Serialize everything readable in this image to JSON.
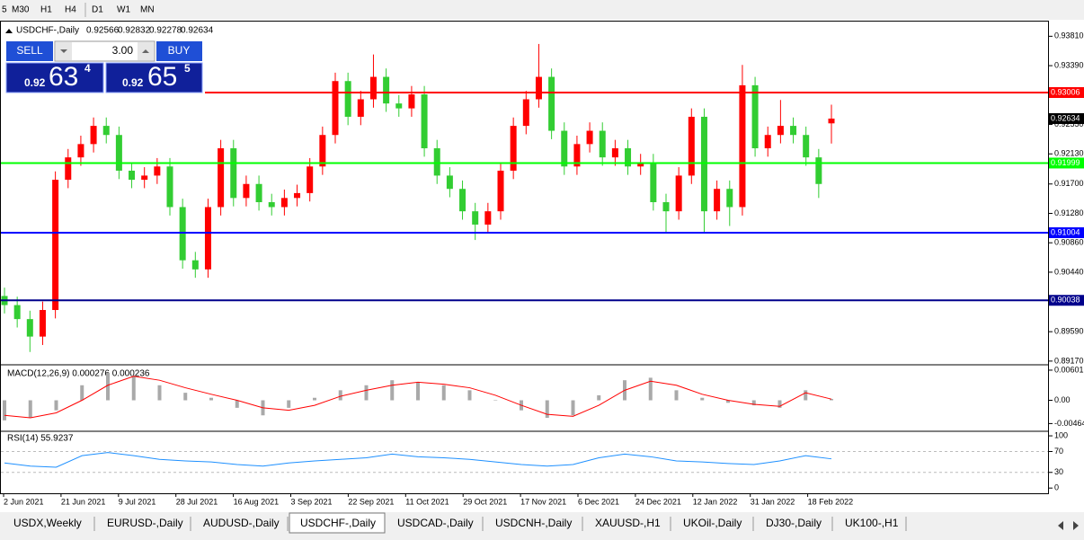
{
  "toolbar": [
    "5",
    "M30",
    "H1",
    "H4",
    "D1",
    "W1",
    "MN"
  ],
  "trade_panel": {
    "sell": "SELL",
    "lot": "3.00",
    "buy": "BUY",
    "sell_price": {
      "big": "0.92",
      "main": "63",
      "small": "4"
    },
    "buy_price": {
      "big": "0.92",
      "main": "65",
      "small": "5"
    }
  },
  "tabs": [
    "USDX,Weekly",
    "EURUSD-,Daily",
    "AUDUSD-,Daily",
    "USDCHF-,Daily",
    "USDCAD-,Daily",
    "USDCNH-,Daily",
    "XAUUSD-,H1",
    "UKOil-,Daily",
    "DJ30-,Daily",
    "UK100-,H1"
  ],
  "active_tab": 3,
  "chart_data": {
    "type": "candlestick",
    "symbol_label": "USDCHF-,Daily",
    "open": [
      0.901,
      0.8997,
      0.8977,
      0.8952,
      0.899,
      0.9176,
      0.9208,
      0.9227,
      0.9253,
      0.924,
      0.9189,
      0.9176,
      0.9182,
      0.9195,
      0.9137,
      0.9061,
      0.9048,
      0.9137,
      0.9221,
      0.915,
      0.917,
      0.9144,
      0.9137,
      0.915,
      0.9157,
      0.9195,
      0.924,
      0.9317,
      0.9266,
      0.9291,
      0.9323,
      0.9285,
      0.9278,
      0.9298,
      0.9221,
      0.9182,
      0.9163,
      0.9131,
      0.9112,
      0.9131,
      0.9189,
      0.9253,
      0.9291,
      0.9323,
      0.9246,
      0.9195,
      0.9227,
      0.9246,
      0.9208,
      0.9221,
      0.9195,
      0.9201,
      0.9144,
      0.9131,
      0.9182,
      0.9266,
      0.9131,
      0.9163,
      0.9137,
      0.9311,
      0.9221,
      0.924,
      0.9253,
      0.924,
      0.9208,
      0.92566
    ],
    "high": [
      0.9022,
      0.9009,
      0.8989,
      0.9002,
      0.9188,
      0.922,
      0.9239,
      0.9265,
      0.9265,
      0.9252,
      0.9201,
      0.9194,
      0.9207,
      0.9207,
      0.9149,
      0.9073,
      0.9149,
      0.9233,
      0.9233,
      0.9182,
      0.9182,
      0.9156,
      0.9162,
      0.9169,
      0.9207,
      0.9252,
      0.9329,
      0.9329,
      0.9303,
      0.9355,
      0.9335,
      0.9297,
      0.931,
      0.931,
      0.9233,
      0.9194,
      0.9175,
      0.9143,
      0.9143,
      0.9201,
      0.9265,
      0.9303,
      0.937,
      0.9335,
      0.9258,
      0.9239,
      0.9258,
      0.9258,
      0.9233,
      0.9233,
      0.9213,
      0.9213,
      0.9156,
      0.9194,
      0.9278,
      0.9278,
      0.9175,
      0.9175,
      0.934,
      0.9323,
      0.9252,
      0.929,
      0.9265,
      0.9252,
      0.922,
      0.92832
    ],
    "low": [
      0.8985,
      0.8965,
      0.893,
      0.894,
      0.8978,
      0.9164,
      0.9196,
      0.9215,
      0.9228,
      0.9177,
      0.9164,
      0.9164,
      0.917,
      0.9125,
      0.9049,
      0.9036,
      0.9036,
      0.9125,
      0.9138,
      0.9138,
      0.9132,
      0.9125,
      0.9125,
      0.9138,
      0.9145,
      0.9183,
      0.9228,
      0.9254,
      0.9254,
      0.9279,
      0.9273,
      0.9266,
      0.9266,
      0.9209,
      0.917,
      0.9151,
      0.9119,
      0.909,
      0.91,
      0.9119,
      0.9177,
      0.9241,
      0.9279,
      0.9234,
      0.9183,
      0.9183,
      0.9215,
      0.9196,
      0.9196,
      0.9183,
      0.9183,
      0.9132,
      0.91,
      0.9119,
      0.917,
      0.91,
      0.9119,
      0.911,
      0.9125,
      0.9209,
      0.9209,
      0.9228,
      0.9228,
      0.9196,
      0.915,
      0.92278
    ],
    "close": [
      0.8997,
      0.8977,
      0.8952,
      0.899,
      0.9176,
      0.9208,
      0.9227,
      0.9253,
      0.924,
      0.9189,
      0.9176,
      0.9182,
      0.9195,
      0.9137,
      0.9061,
      0.9048,
      0.9137,
      0.9221,
      0.915,
      0.917,
      0.9144,
      0.9137,
      0.915,
      0.9157,
      0.9195,
      0.924,
      0.9317,
      0.9266,
      0.9291,
      0.9323,
      0.9285,
      0.9278,
      0.9298,
      0.9221,
      0.9182,
      0.9163,
      0.9131,
      0.9112,
      0.9131,
      0.9189,
      0.9253,
      0.9291,
      0.9323,
      0.9246,
      0.9195,
      0.9227,
      0.9246,
      0.9208,
      0.9221,
      0.9195,
      0.9201,
      0.9144,
      0.9131,
      0.9182,
      0.9266,
      0.9131,
      0.9163,
      0.9137,
      0.9311,
      0.9221,
      0.924,
      0.9253,
      0.924,
      0.9208,
      0.917,
      0.92634
    ],
    "up_color": "#ff0000",
    "down_color": "#32cd32",
    "ylim": [
      0.8913,
      0.9402
    ],
    "yticks": [
      {
        "value": 0.9381,
        "label": "0.93810"
      },
      {
        "value": 0.9339,
        "label": "0.93390"
      },
      {
        "value": 0.9255,
        "label": "0.92550"
      },
      {
        "value": 0.9213,
        "label": "0.92130"
      },
      {
        "value": 0.917,
        "label": "0.91700"
      },
      {
        "value": 0.9128,
        "label": "0.91280"
      },
      {
        "value": 0.9086,
        "label": "0.90860"
      },
      {
        "value": 0.9044,
        "label": "0.90440"
      },
      {
        "value": 0.8959,
        "label": "0.89590"
      },
      {
        "value": 0.8917,
        "label": "0.89170"
      }
    ],
    "levels": [
      {
        "value": 0.93006,
        "color": "#ff0000"
      },
      {
        "value": 0.91999,
        "color": "#00ff00"
      },
      {
        "value": 0.91004,
        "color": "#0000ff"
      },
      {
        "value": 0.90038,
        "color": "#00008b"
      }
    ],
    "x_labels": [
      "2 Jun 2021",
      "21 Jun 2021",
      "9 Jul 2021",
      "28 Jul 2021",
      "16 Aug 2021",
      "3 Sep 2021",
      "22 Sep 2021",
      "11 Oct 2021",
      "29 Oct 2021",
      "17 Nov 2021",
      "6 Dec 2021",
      "24 Dec 2021",
      "12 Jan 2022",
      "31 Jan 2022",
      "18 Feb 2022"
    ],
    "macd": {
      "label": "MACD(12,26,9) 0.000276 0.000236",
      "hist_color": "#a9a9a9",
      "signal_color": "#ff0000",
      "histogram": [
        -0.004,
        -0.0035,
        -0.002,
        0.003,
        0.0055,
        0.005,
        0.003,
        0.0015,
        0.0005,
        -0.0015,
        -0.003,
        -0.0015,
        0.0005,
        0.002,
        0.003,
        0.004,
        0.0035,
        0.003,
        0.002,
        0.0,
        -0.002,
        -0.0035,
        -0.003,
        0.001,
        0.004,
        0.0045,
        0.002,
        0.0005,
        -0.0005,
        -0.001,
        -0.0015,
        0.002,
        0.000276
      ],
      "signal": [
        -0.003,
        -0.0035,
        -0.0025,
        0.0,
        0.003,
        0.0048,
        0.004,
        0.0025,
        0.0012,
        0.0,
        -0.0015,
        -0.002,
        -0.001,
        0.0008,
        0.002,
        0.003,
        0.0036,
        0.0032,
        0.0025,
        0.001,
        -0.001,
        -0.0028,
        -0.0032,
        -0.001,
        0.002,
        0.0038,
        0.003,
        0.0012,
        0.0,
        -0.0008,
        -0.0012,
        0.0015,
        0.000236
      ],
      "ylim": [
        -0.006,
        0.0069
      ],
      "yticks": [
        0.00601,
        {
          "value": 0,
          "label": "0.00"
        },
        -0.00464
      ]
    },
    "rsi": {
      "label": "RSI(14) 55.9237",
      "color": "#1e90ff",
      "values": [
        48,
        42,
        40,
        62,
        68,
        62,
        55,
        52,
        50,
        45,
        42,
        48,
        52,
        55,
        58,
        65,
        60,
        58,
        55,
        50,
        45,
        42,
        45,
        58,
        65,
        60,
        52,
        50,
        47,
        45,
        52,
        62,
        55.9237
      ],
      "ylim": [
        -10,
        107
      ],
      "yticks": [
        100,
        70,
        30,
        0
      ],
      "dashed_levels": [
        70,
        30
      ]
    }
  }
}
